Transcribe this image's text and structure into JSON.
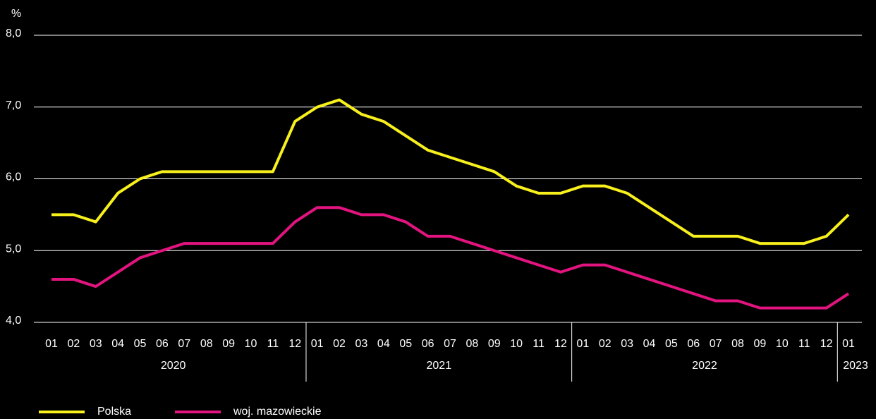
{
  "chart_data": {
    "type": "line",
    "y_unit": "%",
    "categories": [
      "01",
      "02",
      "03",
      "04",
      "05",
      "06",
      "07",
      "08",
      "09",
      "10",
      "11",
      "12",
      "01",
      "02",
      "03",
      "04",
      "05",
      "06",
      "07",
      "08",
      "09",
      "10",
      "11",
      "12",
      "01",
      "02",
      "03",
      "04",
      "05",
      "06",
      "07",
      "08",
      "09",
      "10",
      "11",
      "12",
      "01"
    ],
    "years": [
      "2020",
      "2021",
      "2022",
      "2023"
    ],
    "series": [
      {
        "name": "Polska",
        "color": "#f7f01c",
        "values": [
          5.5,
          5.5,
          5.4,
          5.8,
          6.0,
          6.1,
          6.1,
          6.1,
          6.1,
          6.1,
          6.1,
          6.8,
          7.0,
          7.1,
          6.9,
          6.8,
          6.6,
          6.4,
          6.3,
          6.2,
          6.1,
          5.9,
          5.8,
          5.8,
          5.9,
          5.9,
          5.8,
          5.6,
          5.4,
          5.2,
          5.2,
          5.2,
          5.1,
          5.1,
          5.1,
          5.2,
          5.5
        ]
      },
      {
        "name": "woj. mazowieckie",
        "color": "#e3147f",
        "values": [
          4.6,
          4.6,
          4.5,
          4.7,
          4.9,
          5.0,
          5.1,
          5.1,
          5.1,
          5.1,
          5.1,
          5.4,
          5.6,
          5.6,
          5.5,
          5.5,
          5.4,
          5.2,
          5.2,
          5.1,
          5.0,
          4.9,
          4.8,
          4.7,
          4.8,
          4.8,
          4.7,
          4.6,
          4.5,
          4.4,
          4.3,
          4.3,
          4.2,
          4.2,
          4.2,
          4.2,
          4.4
        ]
      }
    ],
    "ylim": [
      4,
      8
    ],
    "yticks": [
      {
        "value": 4,
        "label": "4,0"
      },
      {
        "value": 5,
        "label": "5,0"
      },
      {
        "value": 6,
        "label": "6,0"
      },
      {
        "value": 7,
        "label": "7,0"
      },
      {
        "value": 8,
        "label": "8,0"
      }
    ],
    "grid": true,
    "legend": "bottom"
  }
}
